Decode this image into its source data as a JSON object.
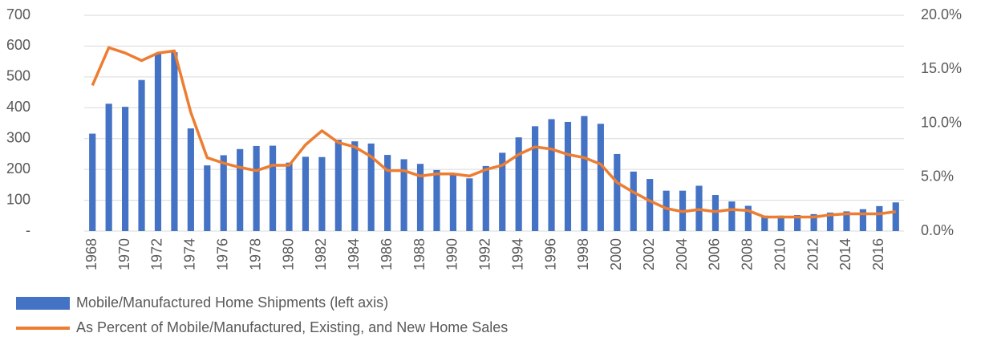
{
  "chart_data": {
    "type": "bar_line",
    "categories": [
      "1968",
      null,
      "1970",
      null,
      "1972",
      null,
      "1974",
      null,
      "1976",
      null,
      "1978",
      null,
      "1980",
      null,
      "1982",
      null,
      "1984",
      null,
      "1986",
      null,
      "1988",
      null,
      "1990",
      null,
      "1992",
      null,
      "1994",
      null,
      "1996",
      null,
      "1998",
      null,
      "2000",
      null,
      "2002",
      null,
      "2004",
      null,
      "2006",
      null,
      "2008",
      null,
      "2010",
      null,
      "2012",
      null,
      "2014",
      null,
      "2016",
      null
    ],
    "series": [
      {
        "name": "Mobile/Manufactured Home Shipments (left axis)",
        "type": "bar",
        "color": "#4472c4",
        "values": [
          316,
          413,
          403,
          490,
          576,
          580,
          333,
          213,
          246,
          266,
          276,
          277,
          222,
          241,
          240,
          296,
          291,
          284,
          247,
          233,
          218,
          198,
          188,
          171,
          211,
          254,
          304,
          340,
          363,
          354,
          373,
          348,
          250,
          193,
          169,
          131,
          131,
          147,
          117,
          96,
          82,
          50,
          50,
          52,
          55,
          60,
          64,
          71,
          81,
          93
        ]
      },
      {
        "name": "As Percent of Mobile/Manufactured, Existing, and New Home Sales",
        "type": "line",
        "axis": "y2",
        "color": "#ed7d31",
        "values": [
          13.5,
          17.0,
          16.5,
          15.8,
          16.5,
          16.7,
          11.0,
          6.8,
          6.3,
          5.9,
          5.6,
          6.1,
          6.1,
          8.0,
          9.3,
          8.2,
          7.8,
          6.9,
          5.6,
          5.6,
          5.1,
          5.3,
          5.3,
          5.1,
          5.7,
          6.1,
          7.1,
          7.8,
          7.6,
          7.1,
          6.8,
          6.2,
          4.5,
          3.6,
          2.8,
          2.1,
          1.8,
          2.0,
          1.8,
          2.0,
          1.9,
          1.3,
          1.3,
          1.3,
          1.3,
          1.5,
          1.6,
          1.6,
          1.6,
          1.8
        ]
      }
    ],
    "ylim": [
      0,
      700
    ],
    "yticks": [
      {
        "value": 0,
        "label": "-"
      },
      100,
      200,
      300,
      400,
      500,
      600,
      700
    ],
    "y2lim": [
      0,
      20
    ],
    "y2ticks": [
      {
        "value": 0,
        "label": "0.0%"
      },
      {
        "value": 5,
        "label": "5.0%"
      },
      {
        "value": 10,
        "label": "10.0%"
      },
      {
        "value": 15,
        "label": "15.0%"
      },
      {
        "value": 20,
        "label": "20.0%"
      }
    ],
    "grid": true
  }
}
